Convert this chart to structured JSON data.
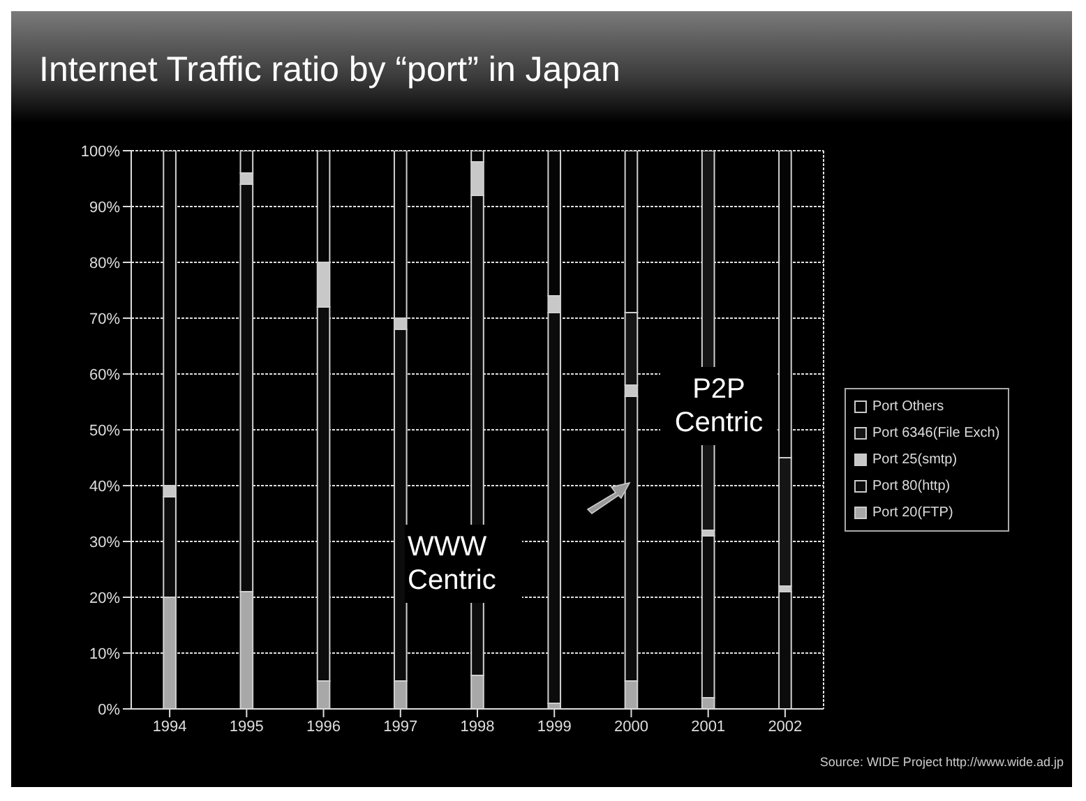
{
  "chart_data": {
    "type": "bar",
    "title": "Internet Traffic ratio by “port” in Japan",
    "stacked": true,
    "categories": [
      "1994",
      "1995",
      "1996",
      "1997",
      "1998",
      "1999",
      "2000",
      "2001",
      "2002"
    ],
    "series": [
      {
        "name": "Port 20(FTP)",
        "color": "#a8a8a8",
        "values": [
          20,
          21,
          5,
          5,
          6,
          1,
          5,
          2,
          0
        ]
      },
      {
        "name": "Port 80(http)",
        "color": "#0c0c0c",
        "values": [
          18,
          73,
          67,
          63,
          86,
          70,
          51,
          29,
          21
        ]
      },
      {
        "name": "Port 25(smtp)",
        "color": "#c8c8c8",
        "values": [
          2,
          2,
          8,
          2,
          6,
          3,
          2,
          1,
          1
        ]
      },
      {
        "name": "Port 6346(File Exch)",
        "color": "#151515",
        "values": [
          0,
          0,
          0,
          0,
          0,
          0,
          13,
          68,
          23
        ]
      },
      {
        "name": "Port Others",
        "color": "#050505",
        "values": [
          60,
          4,
          20,
          30,
          2,
          26,
          29,
          0,
          55
        ]
      }
    ],
    "ylim": [
      0,
      100
    ],
    "yticks": [
      {
        "value": 0,
        "label": "0%"
      },
      {
        "value": 10,
        "label": "10%"
      },
      {
        "value": 20,
        "label": "20%"
      },
      {
        "value": 30,
        "label": "30%"
      },
      {
        "value": 40,
        "label": "40%"
      },
      {
        "value": 50,
        "label": "50%"
      },
      {
        "value": 60,
        "label": "60%"
      },
      {
        "value": 70,
        "label": "70%"
      },
      {
        "value": 80,
        "label": "80%"
      },
      {
        "value": 90,
        "label": "90%"
      },
      {
        "value": 100,
        "label": "100%"
      }
    ],
    "grid": true,
    "legend": "right",
    "annotations": [
      "WWW Centric",
      "P2P Centric",
      "Source: WIDE Project http://www.wide.ad.jp"
    ]
  }
}
